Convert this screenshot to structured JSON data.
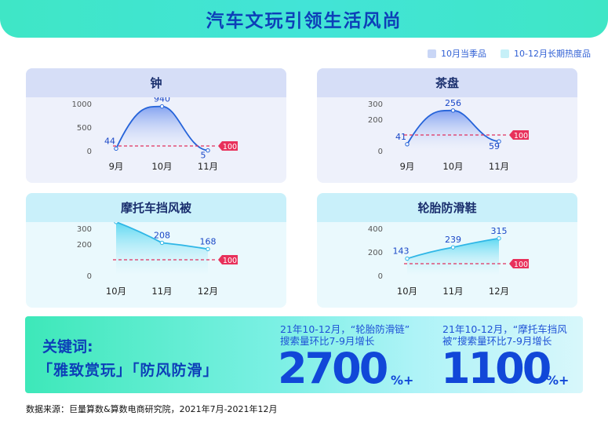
{
  "header": {
    "title": "汽车文玩引领生活风尚"
  },
  "legend": [
    {
      "label": "10月当季品",
      "color": "#c9d6f6"
    },
    {
      "label": "10-12月长期热度品",
      "color": "#c6f0f8"
    }
  ],
  "chart_data": [
    {
      "type": "area",
      "title": "钟",
      "categories": [
        "9月",
        "10月",
        "11月"
      ],
      "values": [
        44,
        940,
        5
      ],
      "yticks": [
        0,
        500,
        1000
      ],
      "ylim": [
        0,
        1000
      ],
      "baseline_label": "100",
      "baseline": 100,
      "style": "curve"
    },
    {
      "type": "area",
      "title": "茶盘",
      "categories": [
        "9月",
        "10月",
        "11月"
      ],
      "values": [
        41,
        256,
        59
      ],
      "yticks": [
        0,
        200,
        300
      ],
      "ylim": [
        0,
        300
      ],
      "baseline_label": "100",
      "baseline": 100,
      "style": "curve"
    },
    {
      "type": "area",
      "title": "摩托车挡风被",
      "categories": [
        "10月",
        "11月",
        "12月"
      ],
      "values": [
        341,
        208,
        168
      ],
      "yticks": [
        0,
        200,
        300
      ],
      "ylim": [
        0,
        300
      ],
      "baseline_label": "100",
      "baseline": 100,
      "style": "line"
    },
    {
      "type": "area",
      "title": "轮胎防滑鞋",
      "categories": [
        "10月",
        "11月",
        "12月"
      ],
      "values": [
        143,
        239,
        315
      ],
      "yticks": [
        0,
        200,
        400
      ],
      "ylim": [
        0,
        400
      ],
      "baseline_label": "100",
      "baseline": 100,
      "style": "line"
    }
  ],
  "keywords": {
    "title": "关键词:",
    "terms": "「雅致赏玩」「防风防滑」"
  },
  "stats": [
    {
      "desc_line1": "21年10-12月，“轮胎防滑链”",
      "desc_line2": "搜索量环比7-9月增长",
      "value": "2700",
      "unit": "%+"
    },
    {
      "desc_line1": "21年10-12月，“摩托车挡风",
      "desc_line2": "被”搜索量环比7-9月增长",
      "value": "1100",
      "unit": "%+"
    }
  ],
  "footer": {
    "source": "数据来源：巨量算数&算数电商研究院，2021年7月-2021年12月"
  }
}
